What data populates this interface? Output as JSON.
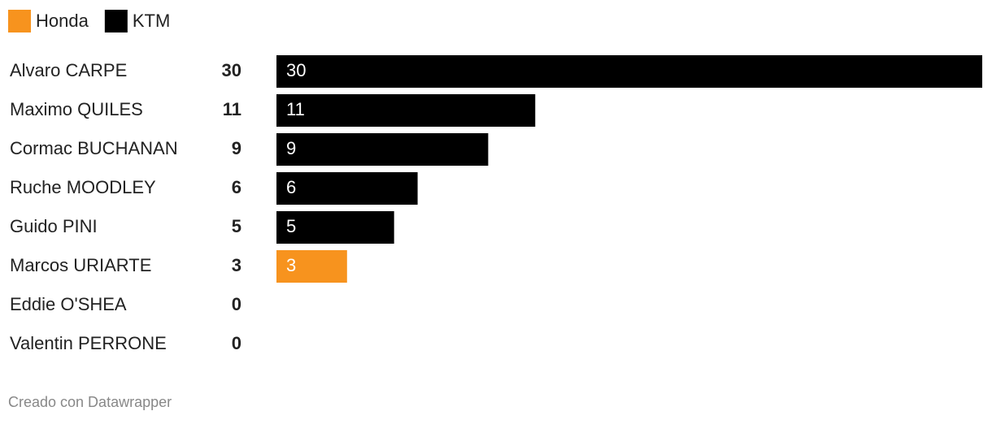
{
  "chart_data": {
    "type": "bar",
    "legend": [
      {
        "name": "Honda",
        "color": "#f7931e"
      },
      {
        "name": "KTM",
        "color": "#000000"
      }
    ],
    "categories": [
      "Alvaro CARPE",
      "Maximo QUILES",
      "Cormac BUCHANAN",
      "Ruche MOODLEY",
      "Guido PINI",
      "Marcos URIARTE",
      "Eddie O'SHEA",
      "Valentin PERRONE"
    ],
    "values": [
      30,
      11,
      9,
      6,
      5,
      3,
      0,
      0
    ],
    "colors": [
      "#000000",
      "#000000",
      "#000000",
      "#000000",
      "#000000",
      "#f7931e",
      null,
      null
    ],
    "xlim": [
      0,
      30
    ],
    "footer": "Creado con Datawrapper"
  }
}
